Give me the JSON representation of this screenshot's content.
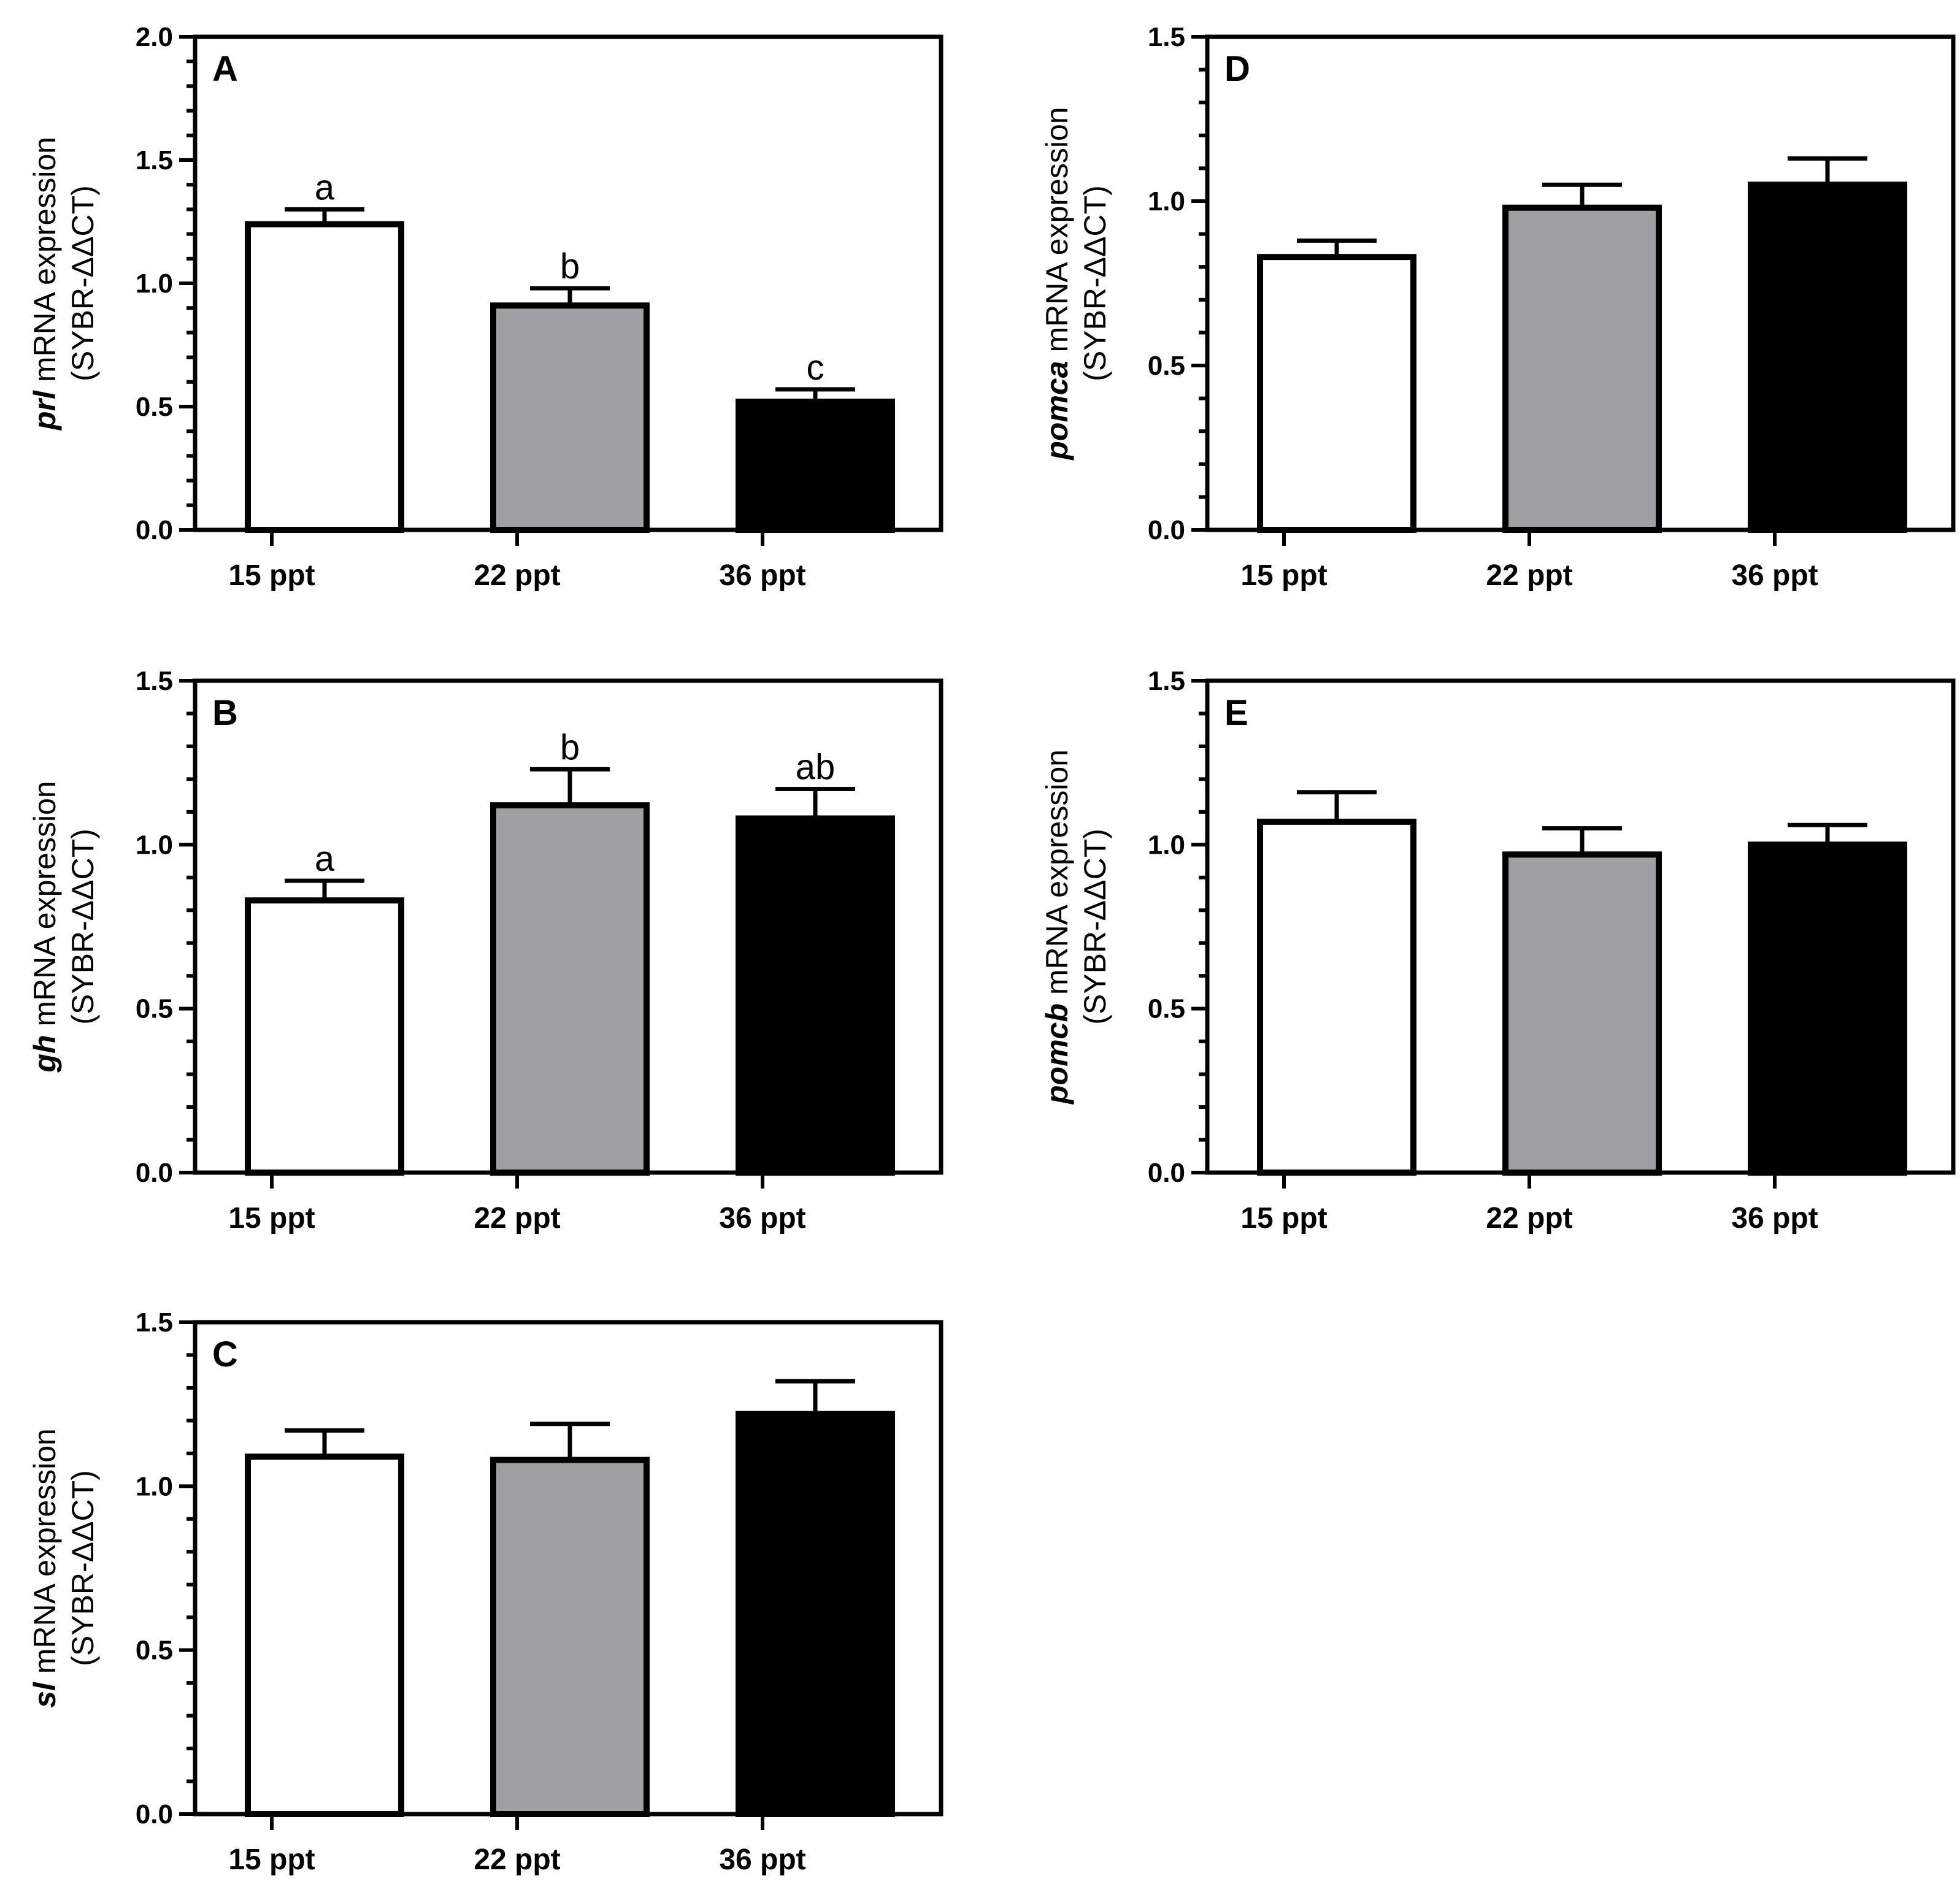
{
  "chart_data": [
    {
      "type": "bar",
      "panel": "A",
      "gene": "prl",
      "ylabel_suffix": " mRNA expression",
      "ylabel_line2": "(SYBR-ΔΔCT)",
      "ylim": [
        0,
        2.0
      ],
      "yticks": [
        "0.0",
        "0.5",
        "1.0",
        "1.5",
        "2.0"
      ],
      "categories": [
        "15 ppt",
        "22 ppt",
        "36 ppt"
      ],
      "values": [
        1.24,
        0.91,
        0.52
      ],
      "errors": [
        0.06,
        0.07,
        0.05
      ],
      "letters": [
        "a",
        "b",
        "c"
      ],
      "fills": [
        "#ffffff",
        "#a0a0a4",
        "#000000"
      ]
    },
    {
      "type": "bar",
      "panel": "B",
      "gene": "gh",
      "ylabel_suffix": " mRNA expression",
      "ylabel_line2": "(SYBR-ΔΔCT)",
      "ylim": [
        0,
        1.5
      ],
      "yticks": [
        "0.0",
        "0.5",
        "1.0",
        "1.5"
      ],
      "categories": [
        "15 ppt",
        "22 ppt",
        "36 ppt"
      ],
      "values": [
        0.83,
        1.12,
        1.08
      ],
      "errors": [
        0.06,
        0.11,
        0.09
      ],
      "letters": [
        "a",
        "b",
        "ab"
      ],
      "fills": [
        "#ffffff",
        "#a0a0a4",
        "#000000"
      ]
    },
    {
      "type": "bar",
      "panel": "C",
      "gene": "sl",
      "ylabel_suffix": " mRNA expression",
      "ylabel_line2": "(SYBR-ΔΔCT)",
      "ylim": [
        0,
        1.5
      ],
      "yticks": [
        "0.0",
        "0.5",
        "1.0",
        "1.5"
      ],
      "categories": [
        "15 ppt",
        "22 ppt",
        "36 ppt"
      ],
      "values": [
        1.09,
        1.08,
        1.22
      ],
      "errors": [
        0.08,
        0.11,
        0.1
      ],
      "letters": [],
      "fills": [
        "#ffffff",
        "#a0a0a4",
        "#000000"
      ]
    },
    {
      "type": "bar",
      "panel": "D",
      "gene": "pomca",
      "ylabel_suffix": " mRNA expression",
      "ylabel_line2": "(SYBR-ΔΔCT)",
      "ylim": [
        0,
        1.5
      ],
      "yticks": [
        "0.0",
        "0.5",
        "1.0",
        "1.5"
      ],
      "categories": [
        "15 ppt",
        "22 ppt",
        "36 ppt"
      ],
      "values": [
        0.83,
        0.98,
        1.05
      ],
      "errors": [
        0.05,
        0.07,
        0.08
      ],
      "letters": [],
      "fills": [
        "#ffffff",
        "#a0a0a4",
        "#000000"
      ]
    },
    {
      "type": "bar",
      "panel": "E",
      "gene": "pomcb",
      "ylabel_suffix": " mRNA expression",
      "ylabel_line2": "(SYBR-ΔΔCT)",
      "ylim": [
        0,
        1.5
      ],
      "yticks": [
        "0.0",
        "0.5",
        "1.0",
        "1.5"
      ],
      "categories": [
        "15 ppt",
        "22 ppt",
        "36 ppt"
      ],
      "values": [
        1.07,
        0.97,
        1.0
      ],
      "errors": [
        0.09,
        0.08,
        0.06
      ],
      "letters": [],
      "fills": [
        "#ffffff",
        "#a0a0a4",
        "#000000"
      ]
    }
  ]
}
